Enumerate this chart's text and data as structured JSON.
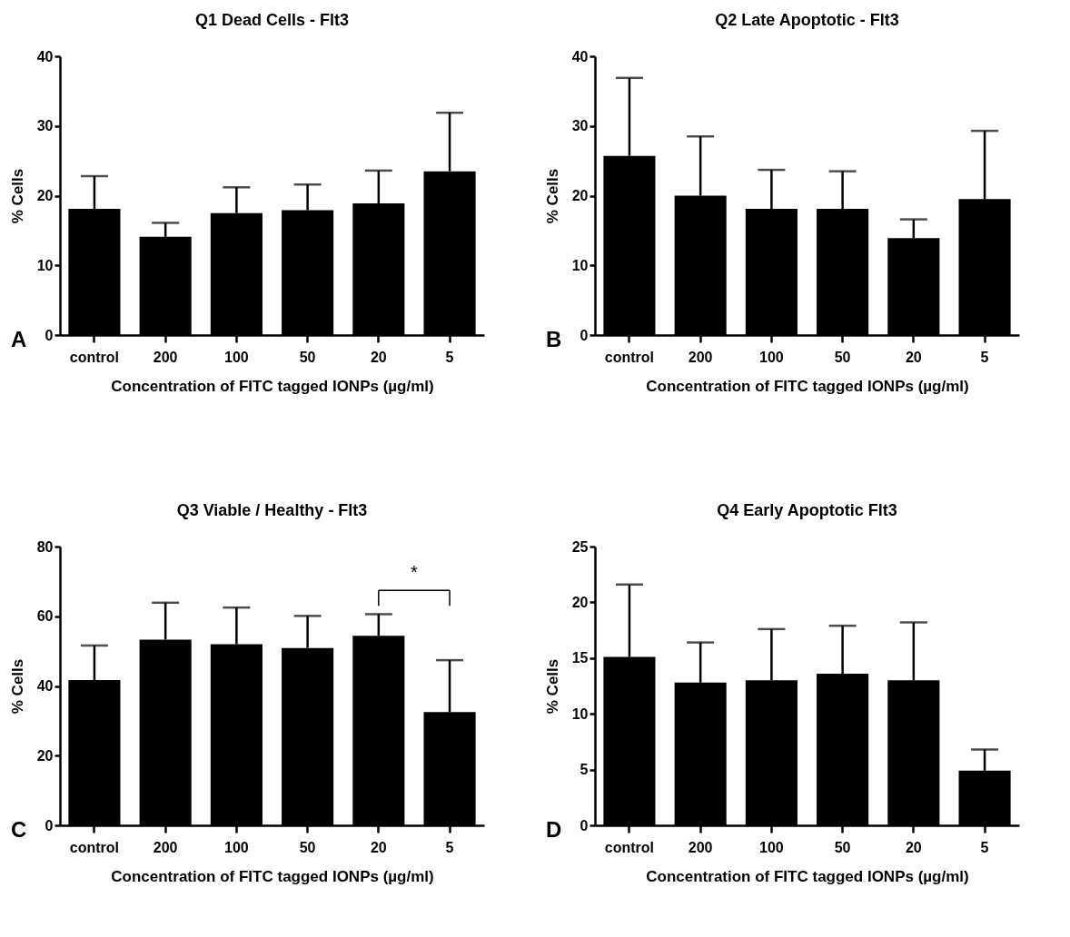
{
  "chart_data": [
    {
      "type": "bar",
      "title": "Q1 Dead Cells - Flt3",
      "xlabel": "Concentration of FITC tagged IONPs (µg/ml)",
      "ylabel": "% Cells",
      "categories": [
        "control",
        "200",
        "100",
        "50",
        "20",
        "5"
      ],
      "values": [
        18.1,
        14.1,
        17.5,
        17.9,
        18.9,
        23.5
      ],
      "errors": [
        [
          18.1,
          22.8
        ],
        [
          14.1,
          16.1
        ],
        [
          17.5,
          21.2
        ],
        [
          17.9,
          21.6
        ],
        [
          18.9,
          23.6
        ],
        [
          23.5,
          31.9
        ]
      ],
      "color": "#000000",
      "ylim": [
        0,
        40
      ],
      "yticks": [
        0,
        10,
        20,
        30,
        40
      ],
      "annotations": [
        "A"
      ]
    },
    {
      "type": "bar",
      "title": "Q2 Late Apoptotic - Flt3",
      "xlabel": "Concentration of FITC tagged IONPs (µg/ml)",
      "ylabel": "% Cells",
      "categories": [
        "control",
        "200",
        "100",
        "50",
        "20",
        "5"
      ],
      "values": [
        25.7,
        20.0,
        18.1,
        18.1,
        13.9,
        19.5
      ],
      "errors": [
        [
          25.7,
          36.9
        ],
        [
          20.0,
          28.5
        ],
        [
          18.1,
          23.7
        ],
        [
          18.1,
          23.5
        ],
        [
          13.9,
          16.6
        ],
        [
          19.5,
          29.3
        ]
      ],
      "color": "#000000",
      "ylim": [
        0,
        40
      ],
      "yticks": [
        0,
        10,
        20,
        30,
        40
      ],
      "annotations": [
        "B"
      ]
    },
    {
      "type": "bar",
      "title": "Q3 Viable / Healthy - Flt3",
      "xlabel": "Concentration of FITC tagged IONPs (µg/ml)",
      "ylabel": "% Cells",
      "categories": [
        "control",
        "200",
        "100",
        "50",
        "20",
        "5"
      ],
      "values": [
        41.7,
        53.3,
        52.0,
        50.9,
        54.4,
        32.5
      ],
      "errors": [
        [
          41.7,
          51.6
        ],
        [
          53.3,
          63.9
        ],
        [
          52.0,
          62.5
        ],
        [
          50.9,
          60.1
        ],
        [
          54.4,
          60.6
        ],
        [
          32.5,
          47.4
        ]
      ],
      "color": "#000000",
      "ylim": [
        0,
        80
      ],
      "yticks": [
        0,
        20,
        40,
        60,
        80
      ],
      "annotations": [
        "C",
        "*"
      ]
    },
    {
      "type": "bar",
      "title": "Q4 Early Apoptotic Flt3",
      "xlabel": "Concentration of FITC tagged IONPs (µg/ml)",
      "ylabel": "% Cells",
      "categories": [
        "control",
        "200",
        "100",
        "50",
        "20",
        "5"
      ],
      "values": [
        15.1,
        12.8,
        13.0,
        13.6,
        13.0,
        4.9
      ],
      "errors": [
        [
          15.1,
          21.6
        ],
        [
          12.8,
          16.4
        ],
        [
          13.0,
          17.6
        ],
        [
          13.6,
          17.9
        ],
        [
          13.0,
          18.2
        ],
        [
          4.9,
          6.8
        ]
      ],
      "color": "#000000",
      "ylim": [
        0,
        25
      ],
      "yticks": [
        0,
        5,
        10,
        15,
        20,
        25
      ],
      "annotations": [
        "D"
      ]
    }
  ]
}
